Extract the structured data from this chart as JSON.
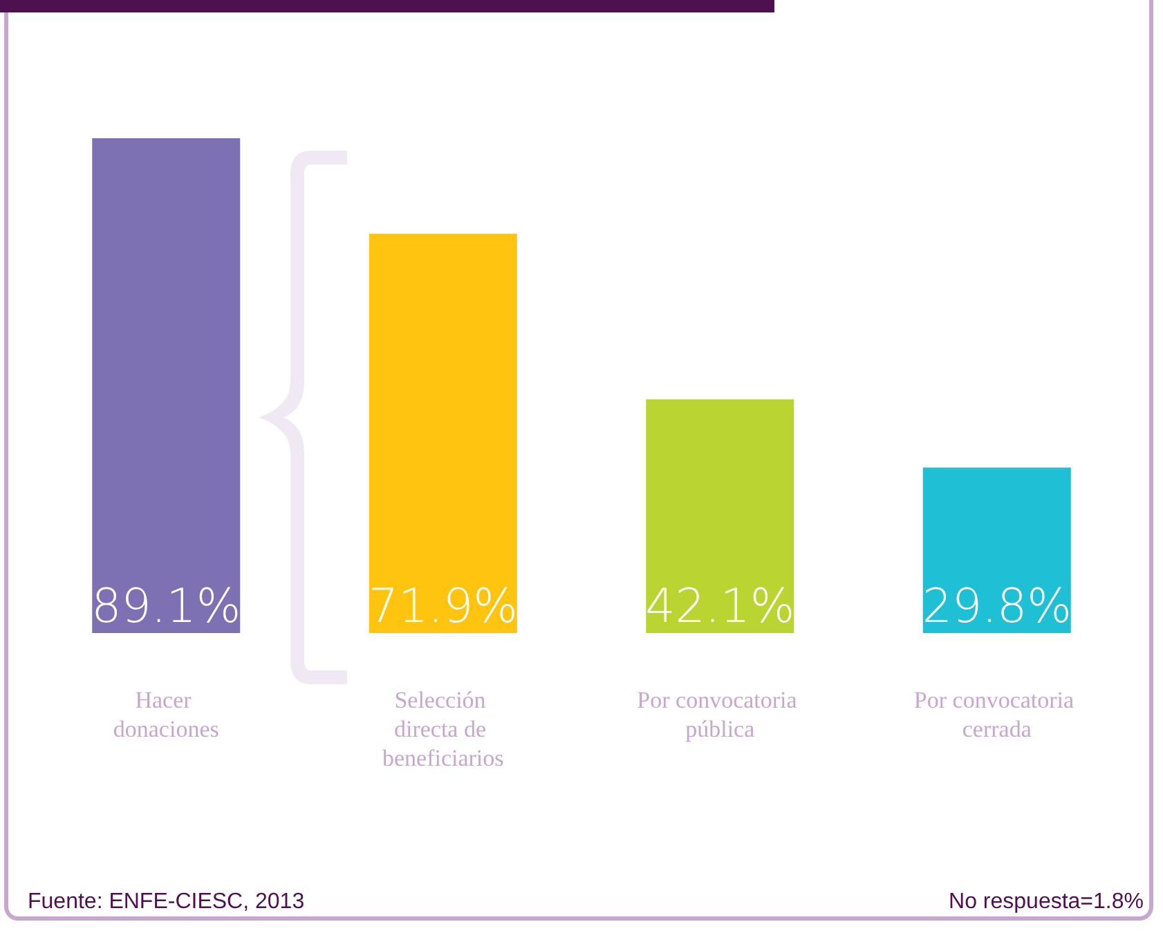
{
  "chart_data": {
    "type": "bar",
    "categories": [
      "Hacer donaciones",
      "Selección directa de beneficiarios",
      "Por convocatoria pública",
      "Por convocatoria cerrada"
    ],
    "values": [
      89.1,
      71.9,
      42.1,
      29.8
    ],
    "colors": [
      "#7e71b3",
      "#fec40f",
      "#bad532",
      "#1fbfd5"
    ],
    "value_labels": [
      "89.1%",
      "71.9%",
      "42.1%",
      "29.8%"
    ],
    "annotations": [
      "Fuente: ENFE-CIESC, 2013",
      "No respuesta=1.8%"
    ],
    "grid": false
  }
}
